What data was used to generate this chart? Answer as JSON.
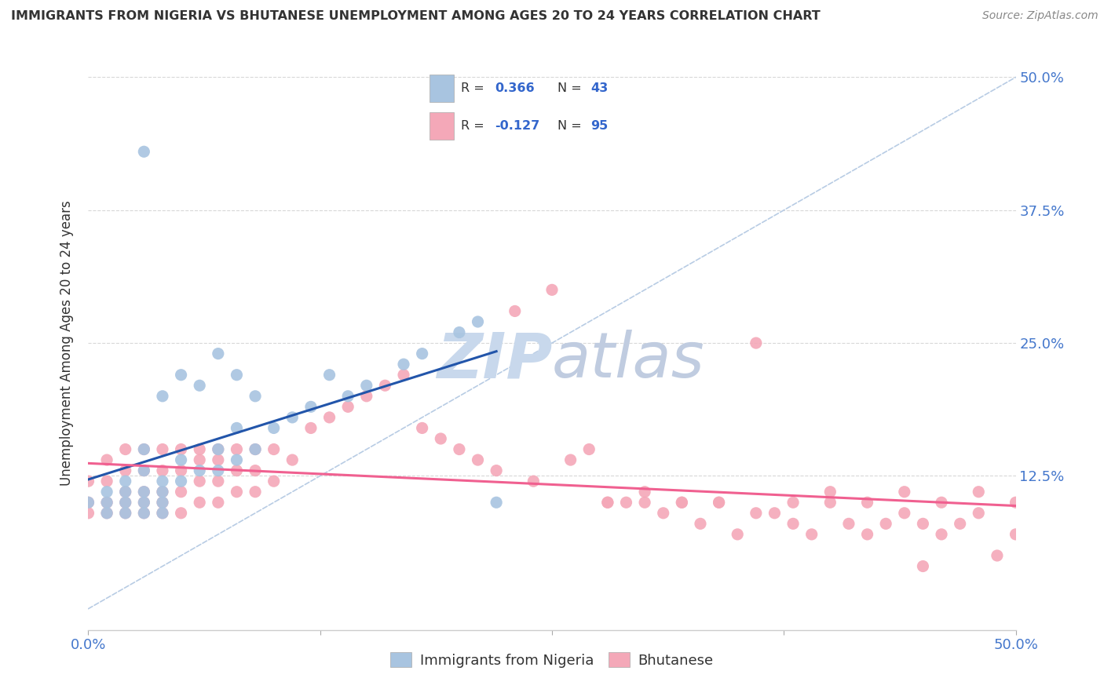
{
  "title": "IMMIGRANTS FROM NIGERIA VS BHUTANESE UNEMPLOYMENT AMONG AGES 20 TO 24 YEARS CORRELATION CHART",
  "source": "Source: ZipAtlas.com",
  "ylabel": "Unemployment Among Ages 20 to 24 years",
  "legend_label1": "Immigrants from Nigeria",
  "legend_label2": "Bhutanese",
  "R1": 0.366,
  "N1": 43,
  "R2": -0.127,
  "N2": 95,
  "nigeria_color": "#a8c4e0",
  "bhutanese_color": "#f4a8b8",
  "nigeria_line_color": "#2255aa",
  "bhutanese_line_color": "#f06090",
  "trend_line_color": "#b8cce4",
  "background_color": "#ffffff",
  "xlim_min": 0.0,
  "xlim_max": 0.5,
  "ylim_min": -0.02,
  "ylim_max": 0.52,
  "nigeria_x": [
    0.0,
    0.01,
    0.01,
    0.01,
    0.02,
    0.02,
    0.02,
    0.02,
    0.03,
    0.03,
    0.03,
    0.03,
    0.03,
    0.04,
    0.04,
    0.04,
    0.04,
    0.05,
    0.05,
    0.05,
    0.06,
    0.06,
    0.07,
    0.07,
    0.07,
    0.08,
    0.08,
    0.08,
    0.09,
    0.09,
    0.1,
    0.11,
    0.12,
    0.13,
    0.14,
    0.15,
    0.17,
    0.18,
    0.2,
    0.21,
    0.22,
    0.04,
    0.03
  ],
  "nigeria_y": [
    0.1,
    0.09,
    0.1,
    0.11,
    0.09,
    0.1,
    0.11,
    0.12,
    0.09,
    0.1,
    0.11,
    0.13,
    0.15,
    0.1,
    0.11,
    0.12,
    0.2,
    0.12,
    0.14,
    0.22,
    0.13,
    0.21,
    0.13,
    0.15,
    0.24,
    0.14,
    0.17,
    0.22,
    0.15,
    0.2,
    0.17,
    0.18,
    0.19,
    0.22,
    0.2,
    0.21,
    0.23,
    0.24,
    0.26,
    0.27,
    0.1,
    0.09,
    0.43
  ],
  "bhutanese_x": [
    0.0,
    0.0,
    0.0,
    0.01,
    0.01,
    0.01,
    0.01,
    0.02,
    0.02,
    0.02,
    0.02,
    0.02,
    0.03,
    0.03,
    0.03,
    0.03,
    0.03,
    0.04,
    0.04,
    0.04,
    0.04,
    0.04,
    0.05,
    0.05,
    0.05,
    0.05,
    0.06,
    0.06,
    0.06,
    0.06,
    0.07,
    0.07,
    0.07,
    0.07,
    0.08,
    0.08,
    0.08,
    0.09,
    0.09,
    0.09,
    0.1,
    0.1,
    0.11,
    0.12,
    0.13,
    0.14,
    0.15,
    0.16,
    0.17,
    0.18,
    0.19,
    0.2,
    0.21,
    0.22,
    0.23,
    0.24,
    0.25,
    0.26,
    0.27,
    0.28,
    0.3,
    0.31,
    0.32,
    0.33,
    0.34,
    0.35,
    0.36,
    0.37,
    0.38,
    0.39,
    0.4,
    0.41,
    0.42,
    0.43,
    0.44,
    0.45,
    0.46,
    0.47,
    0.48,
    0.49,
    0.5,
    0.29,
    0.34,
    0.36,
    0.38,
    0.4,
    0.42,
    0.44,
    0.46,
    0.48,
    0.5,
    0.28,
    0.3,
    0.32,
    0.45
  ],
  "bhutanese_y": [
    0.09,
    0.1,
    0.12,
    0.09,
    0.1,
    0.12,
    0.14,
    0.09,
    0.1,
    0.11,
    0.13,
    0.15,
    0.09,
    0.1,
    0.11,
    0.13,
    0.15,
    0.09,
    0.1,
    0.11,
    0.13,
    0.15,
    0.09,
    0.11,
    0.13,
    0.15,
    0.1,
    0.12,
    0.14,
    0.15,
    0.1,
    0.12,
    0.14,
    0.15,
    0.11,
    0.13,
    0.15,
    0.11,
    0.13,
    0.15,
    0.12,
    0.15,
    0.14,
    0.17,
    0.18,
    0.19,
    0.2,
    0.21,
    0.22,
    0.17,
    0.16,
    0.15,
    0.14,
    0.13,
    0.28,
    0.12,
    0.3,
    0.14,
    0.15,
    0.1,
    0.1,
    0.09,
    0.1,
    0.08,
    0.1,
    0.07,
    0.25,
    0.09,
    0.08,
    0.07,
    0.1,
    0.08,
    0.07,
    0.08,
    0.09,
    0.08,
    0.07,
    0.08,
    0.09,
    0.05,
    0.07,
    0.1,
    0.1,
    0.09,
    0.1,
    0.11,
    0.1,
    0.11,
    0.1,
    0.11,
    0.1,
    0.1,
    0.11,
    0.1,
    0.04
  ]
}
